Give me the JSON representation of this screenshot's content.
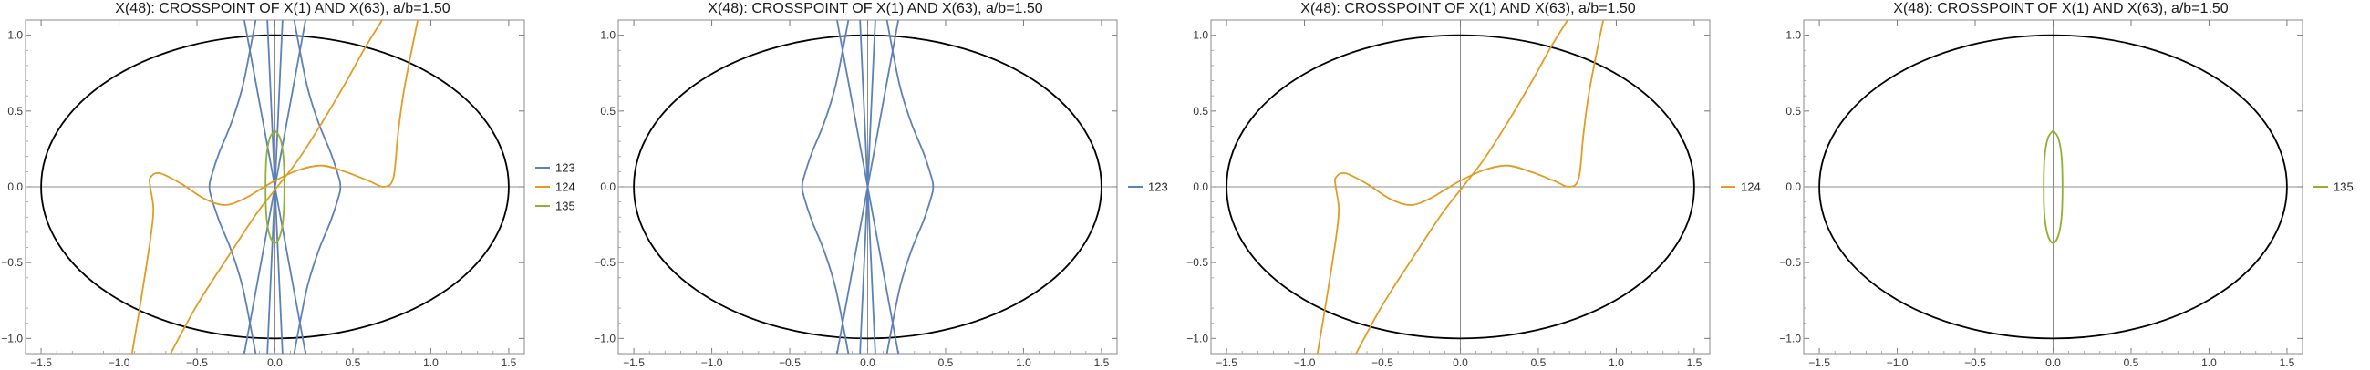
{
  "chart_data": [
    {
      "type": "line",
      "title": "X(48): CROSSPOINT OF X(1) AND X(63), a/b=1.50",
      "xlim": [
        -1.6,
        1.6
      ],
      "ylim": [
        -1.1,
        1.1
      ],
      "xticks": [
        "-1.5",
        "-1.0",
        "-0.5",
        "0.0",
        "0.5",
        "1.0",
        "1.5"
      ],
      "yticks": [
        "-1.0",
        "-0.5",
        "0.0",
        "0.5",
        "1.0"
      ],
      "grid": false,
      "legend": "right",
      "ellipse": {
        "a": 1.5,
        "b": 1.0,
        "color": "#000000"
      },
      "series": [
        {
          "name": "123",
          "color": "#5E81B5",
          "curves": [
            [
              [
                -0.12,
                1.12
              ],
              [
                -0.16,
                0.9
              ],
              [
                -0.21,
                0.65
              ],
              [
                -0.28,
                0.42
              ],
              [
                -0.36,
                0.22
              ],
              [
                -0.41,
                0.06
              ],
              [
                -0.42,
                0.0
              ],
              [
                -0.41,
                -0.06
              ],
              [
                -0.36,
                -0.22
              ],
              [
                -0.28,
                -0.42
              ],
              [
                -0.21,
                -0.65
              ],
              [
                -0.16,
                -0.9
              ],
              [
                -0.12,
                -1.12
              ]
            ],
            [
              [
                0.12,
                1.12
              ],
              [
                0.16,
                0.9
              ],
              [
                0.21,
                0.65
              ],
              [
                0.28,
                0.42
              ],
              [
                0.36,
                0.22
              ],
              [
                0.41,
                0.06
              ],
              [
                0.42,
                0.0
              ],
              [
                0.41,
                -0.06
              ],
              [
                0.36,
                -0.22
              ],
              [
                0.28,
                -0.42
              ],
              [
                0.21,
                -0.65
              ],
              [
                0.16,
                -0.9
              ],
              [
                0.12,
                -1.12
              ]
            ],
            [
              [
                -0.2,
                1.12
              ],
              [
                0.2,
                -1.12
              ]
            ],
            [
              [
                0.2,
                1.12
              ],
              [
                -0.2,
                -1.12
              ]
            ],
            [
              [
                -0.05,
                1.12
              ],
              [
                0.05,
                -1.12
              ]
            ],
            [
              [
                0.05,
                1.12
              ],
              [
                -0.05,
                -1.12
              ]
            ]
          ]
        },
        {
          "name": "124",
          "color": "#E19C24",
          "curves": [
            [
              [
                -0.92,
                -1.12
              ],
              [
                -0.86,
                -0.75
              ],
              [
                -0.8,
                -0.35
              ],
              [
                -0.78,
                -0.15
              ],
              [
                -0.8,
                0.0
              ],
              [
                -0.8,
                0.06
              ],
              [
                -0.74,
                0.09
              ],
              [
                -0.6,
                0.02
              ],
              [
                -0.45,
                -0.08
              ],
              [
                -0.32,
                -0.12
              ],
              [
                -0.2,
                -0.08
              ],
              [
                -0.1,
                -0.02
              ],
              [
                0.0,
                0.04
              ],
              [
                0.15,
                0.11
              ],
              [
                0.3,
                0.14
              ],
              [
                0.45,
                0.1
              ],
              [
                0.6,
                0.04
              ],
              [
                0.7,
                0.0
              ],
              [
                0.76,
                0.06
              ],
              [
                0.79,
                0.35
              ],
              [
                0.83,
                0.65
              ],
              [
                0.92,
                1.12
              ]
            ],
            [
              [
                -0.68,
                -1.12
              ],
              [
                -0.5,
                -0.78
              ],
              [
                -0.3,
                -0.46
              ],
              [
                -0.12,
                -0.18
              ],
              [
                0.0,
                -0.02
              ],
              [
                0.15,
                0.18
              ],
              [
                0.3,
                0.42
              ],
              [
                0.45,
                0.68
              ],
              [
                0.58,
                0.92
              ],
              [
                0.7,
                1.12
              ]
            ]
          ]
        },
        {
          "name": "135",
          "color": "#8FB032",
          "curves": [
            [
              [
                0.0,
                0.37
              ],
              [
                0.034,
                0.32
              ],
              [
                0.055,
                0.19
              ],
              [
                0.06,
                0.0
              ],
              [
                0.055,
                -0.19
              ],
              [
                0.034,
                -0.32
              ],
              [
                0.0,
                -0.37
              ],
              [
                -0.034,
                -0.32
              ],
              [
                -0.055,
                -0.19
              ],
              [
                -0.06,
                0.0
              ],
              [
                -0.055,
                0.19
              ],
              [
                -0.034,
                0.32
              ],
              [
                0.0,
                0.37
              ]
            ]
          ]
        }
      ]
    },
    {
      "type": "line",
      "title": "X(48): CROSSPOINT OF X(1) AND X(63), a/b=1.50",
      "xlim": [
        -1.6,
        1.6
      ],
      "ylim": [
        -1.1,
        1.1
      ],
      "xticks": [
        "-1.5",
        "-1.0",
        "-0.5",
        "0.0",
        "0.5",
        "1.0",
        "1.5"
      ],
      "yticks": [
        "-1.0",
        "-0.5",
        "0.0",
        "0.5",
        "1.0"
      ],
      "grid": false,
      "legend": "right",
      "ellipse": {
        "a": 1.5,
        "b": 1.0,
        "color": "#000000"
      },
      "series": [
        {
          "name": "123",
          "color": "#5E81B5",
          "curves": [
            [
              [
                -0.12,
                1.12
              ],
              [
                -0.16,
                0.9
              ],
              [
                -0.21,
                0.65
              ],
              [
                -0.28,
                0.42
              ],
              [
                -0.36,
                0.22
              ],
              [
                -0.41,
                0.06
              ],
              [
                -0.42,
                0.0
              ],
              [
                -0.41,
                -0.06
              ],
              [
                -0.36,
                -0.22
              ],
              [
                -0.28,
                -0.42
              ],
              [
                -0.21,
                -0.65
              ],
              [
                -0.16,
                -0.9
              ],
              [
                -0.12,
                -1.12
              ]
            ],
            [
              [
                0.12,
                1.12
              ],
              [
                0.16,
                0.9
              ],
              [
                0.21,
                0.65
              ],
              [
                0.28,
                0.42
              ],
              [
                0.36,
                0.22
              ],
              [
                0.41,
                0.06
              ],
              [
                0.42,
                0.0
              ],
              [
                0.41,
                -0.06
              ],
              [
                0.36,
                -0.22
              ],
              [
                0.28,
                -0.42
              ],
              [
                0.21,
                -0.65
              ],
              [
                0.16,
                -0.9
              ],
              [
                0.12,
                -1.12
              ]
            ],
            [
              [
                -0.2,
                1.12
              ],
              [
                0.2,
                -1.12
              ]
            ],
            [
              [
                0.2,
                1.12
              ],
              [
                -0.2,
                -1.12
              ]
            ],
            [
              [
                -0.05,
                1.12
              ],
              [
                0.05,
                -1.12
              ]
            ],
            [
              [
                0.05,
                1.12
              ],
              [
                -0.05,
                -1.12
              ]
            ]
          ]
        }
      ]
    },
    {
      "type": "line",
      "title": "X(48): CROSSPOINT OF X(1) AND X(63), a/b=1.50",
      "xlim": [
        -1.6,
        1.6
      ],
      "ylim": [
        -1.1,
        1.1
      ],
      "xticks": [
        "-1.5",
        "-1.0",
        "-0.5",
        "0.0",
        "0.5",
        "1.0",
        "1.5"
      ],
      "yticks": [
        "-1.0",
        "-0.5",
        "0.0",
        "0.5",
        "1.0"
      ],
      "grid": false,
      "legend": "right",
      "ellipse": {
        "a": 1.5,
        "b": 1.0,
        "color": "#000000"
      },
      "series": [
        {
          "name": "124",
          "color": "#E19C24",
          "curves": [
            [
              [
                -0.92,
                -1.12
              ],
              [
                -0.86,
                -0.75
              ],
              [
                -0.8,
                -0.35
              ],
              [
                -0.78,
                -0.15
              ],
              [
                -0.8,
                0.0
              ],
              [
                -0.8,
                0.06
              ],
              [
                -0.74,
                0.09
              ],
              [
                -0.6,
                0.02
              ],
              [
                -0.45,
                -0.08
              ],
              [
                -0.32,
                -0.12
              ],
              [
                -0.2,
                -0.08
              ],
              [
                -0.1,
                -0.02
              ],
              [
                0.0,
                0.04
              ],
              [
                0.15,
                0.11
              ],
              [
                0.3,
                0.14
              ],
              [
                0.45,
                0.1
              ],
              [
                0.6,
                0.04
              ],
              [
                0.7,
                0.0
              ],
              [
                0.76,
                0.06
              ],
              [
                0.79,
                0.35
              ],
              [
                0.83,
                0.65
              ],
              [
                0.92,
                1.12
              ]
            ],
            [
              [
                -0.68,
                -1.12
              ],
              [
                -0.5,
                -0.78
              ],
              [
                -0.3,
                -0.46
              ],
              [
                -0.12,
                -0.18
              ],
              [
                0.0,
                -0.02
              ],
              [
                0.15,
                0.18
              ],
              [
                0.3,
                0.42
              ],
              [
                0.45,
                0.68
              ],
              [
                0.58,
                0.92
              ],
              [
                0.7,
                1.12
              ]
            ]
          ]
        }
      ]
    },
    {
      "type": "line",
      "title": "X(48): CROSSPOINT OF X(1) AND X(63), a/b=1.50",
      "xlim": [
        -1.6,
        1.6
      ],
      "ylim": [
        -1.1,
        1.1
      ],
      "xticks": [
        "-1.5",
        "-1.0",
        "-0.5",
        "0.0",
        "0.5",
        "1.0",
        "1.5"
      ],
      "yticks": [
        "-1.0",
        "-0.5",
        "0.0",
        "0.5",
        "1.0"
      ],
      "grid": false,
      "legend": "right",
      "ellipse": {
        "a": 1.5,
        "b": 1.0,
        "color": "#000000"
      },
      "series": [
        {
          "name": "135",
          "color": "#8FB032",
          "curves": [
            [
              [
                0.0,
                0.37
              ],
              [
                0.034,
                0.32
              ],
              [
                0.055,
                0.19
              ],
              [
                0.06,
                0.0
              ],
              [
                0.055,
                -0.19
              ],
              [
                0.034,
                -0.32
              ],
              [
                0.0,
                -0.37
              ],
              [
                -0.034,
                -0.32
              ],
              [
                -0.055,
                -0.19
              ],
              [
                -0.06,
                0.0
              ],
              [
                -0.055,
                0.19
              ],
              [
                -0.034,
                0.32
              ],
              [
                0.0,
                0.37
              ]
            ]
          ]
        }
      ]
    }
  ]
}
